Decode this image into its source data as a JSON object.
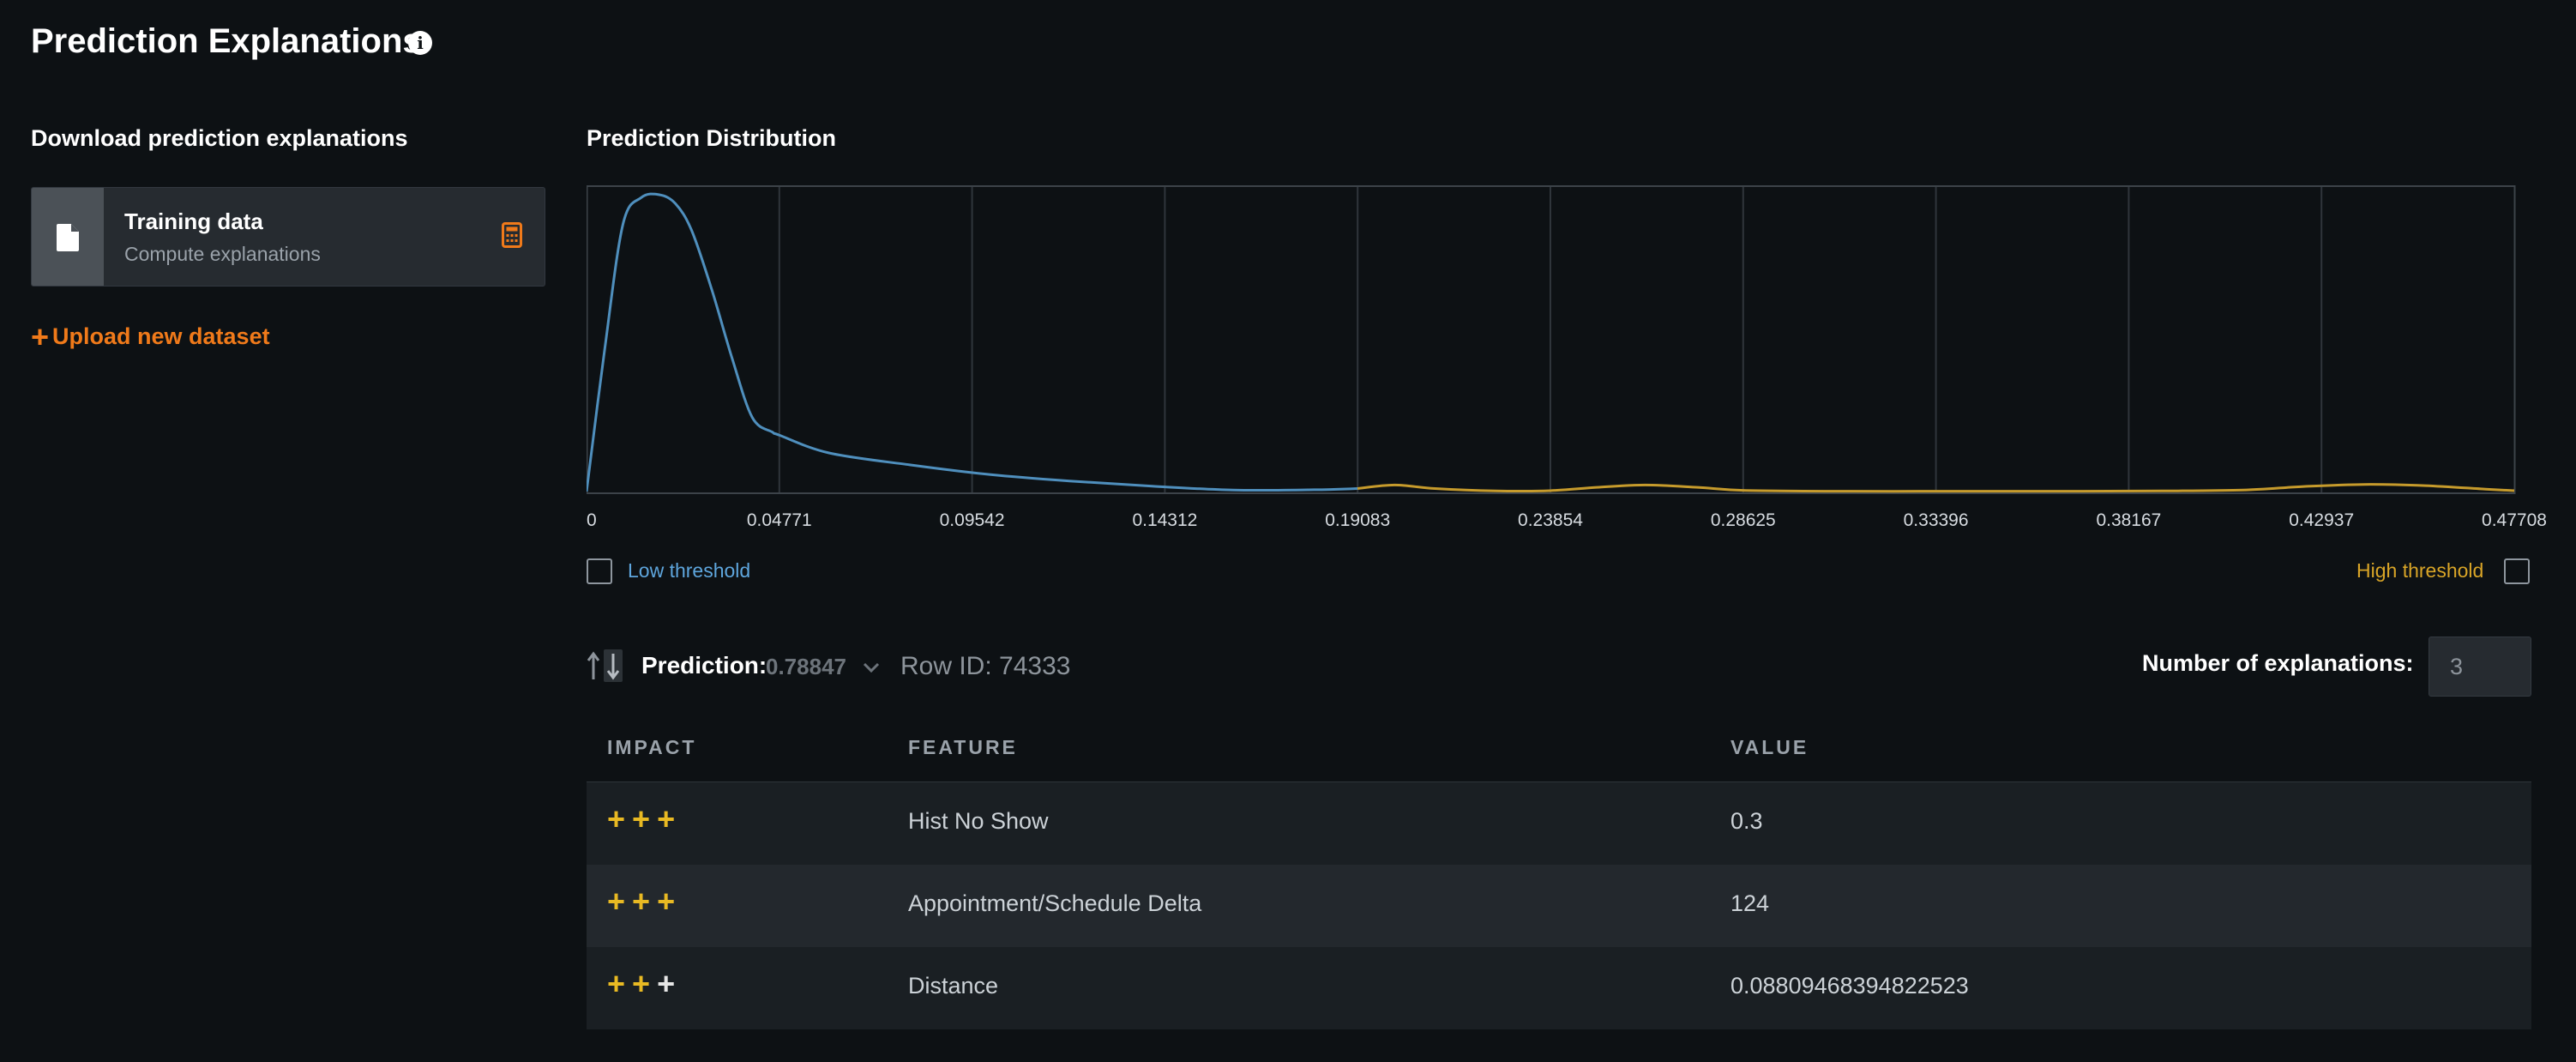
{
  "header": {
    "title": "Prediction Explanations",
    "info_icon": "info-icon"
  },
  "download": {
    "title": "Download prediction explanations",
    "dataset": {
      "name": "Training data",
      "subtitle": "Compute explanations",
      "file_icon": "file-icon",
      "action_icon": "calculator-icon"
    },
    "upload_label": "Upload new dataset",
    "upload_icon": "plus-icon"
  },
  "distribution": {
    "title": "Prediction Distribution",
    "chart_data": {
      "type": "line",
      "x_ticks": [
        "0",
        "0.04771",
        "0.09542",
        "0.14312",
        "0.19083",
        "0.23854",
        "0.28625",
        "0.33396",
        "0.38167",
        "0.42937",
        "0.47708"
      ],
      "xlim": [
        0,
        0.47708
      ],
      "grid": true,
      "legend": "none",
      "series": [
        {
          "color": "#4f8fbd",
          "x": [
            0,
            0.0045,
            0.009,
            0.0135,
            0.018,
            0.022,
            0.026,
            0.031,
            0.036,
            0.041,
            0.046,
            0.0477,
            0.06,
            0.08,
            0.1,
            0.12,
            0.14,
            0.16,
            0.18,
            0.1908
          ],
          "y": [
            0,
            0.48,
            0.9,
            0.99,
            1.0,
            0.97,
            0.88,
            0.68,
            0.45,
            0.25,
            0.2,
            0.19,
            0.13,
            0.09,
            0.057,
            0.035,
            0.018,
            0.005,
            0.006,
            0.01
          ]
        },
        {
          "color": "#c69b2c",
          "x": [
            0.1908,
            0.2,
            0.21,
            0.225,
            0.2385,
            0.25,
            0.262,
            0.275,
            0.2862,
            0.31,
            0.33,
            0.35,
            0.37,
            0.39,
            0.41,
            0.425,
            0.44,
            0.455,
            0.47,
            0.47708
          ],
          "y": [
            0.01,
            0.022,
            0.01,
            0.002,
            0.003,
            0.014,
            0.022,
            0.014,
            0.004,
            0.001,
            0.001,
            0.001,
            0.001,
            0.002,
            0.005,
            0.017,
            0.024,
            0.02,
            0.008,
            0.003
          ]
        }
      ]
    },
    "low_threshold_label": "Low threshold",
    "high_threshold_label": "High threshold"
  },
  "prediction": {
    "sort_icon": "sort-icon",
    "label": "Prediction:",
    "value": "0.78847",
    "row_id": "Row ID: 74333",
    "num_explanations_label": "Number of explanations:",
    "num_explanations_value": "3"
  },
  "table": {
    "columns": [
      "IMPACT",
      "FEATURE",
      "VALUE"
    ],
    "rows": [
      {
        "impact": [
          "+",
          "+",
          "+"
        ],
        "impact_kind": [
          "pos",
          "pos",
          "pos"
        ],
        "feature": "Hist No Show",
        "value": "0.3"
      },
      {
        "impact": [
          "+",
          "+",
          "+"
        ],
        "impact_kind": [
          "pos",
          "pos",
          "pos"
        ],
        "feature": "Appointment/Schedule Delta",
        "value": "124"
      },
      {
        "impact": [
          "+",
          "+",
          "+"
        ],
        "impact_kind": [
          "pos",
          "pos",
          "neu"
        ],
        "feature": "Distance",
        "value": "0.08809468394822523"
      }
    ]
  },
  "colors": {
    "accent": "#f07a1a",
    "impact_positive": "#e8b923",
    "low_threshold": "#5ea6dd",
    "high_threshold": "#d9a527"
  }
}
